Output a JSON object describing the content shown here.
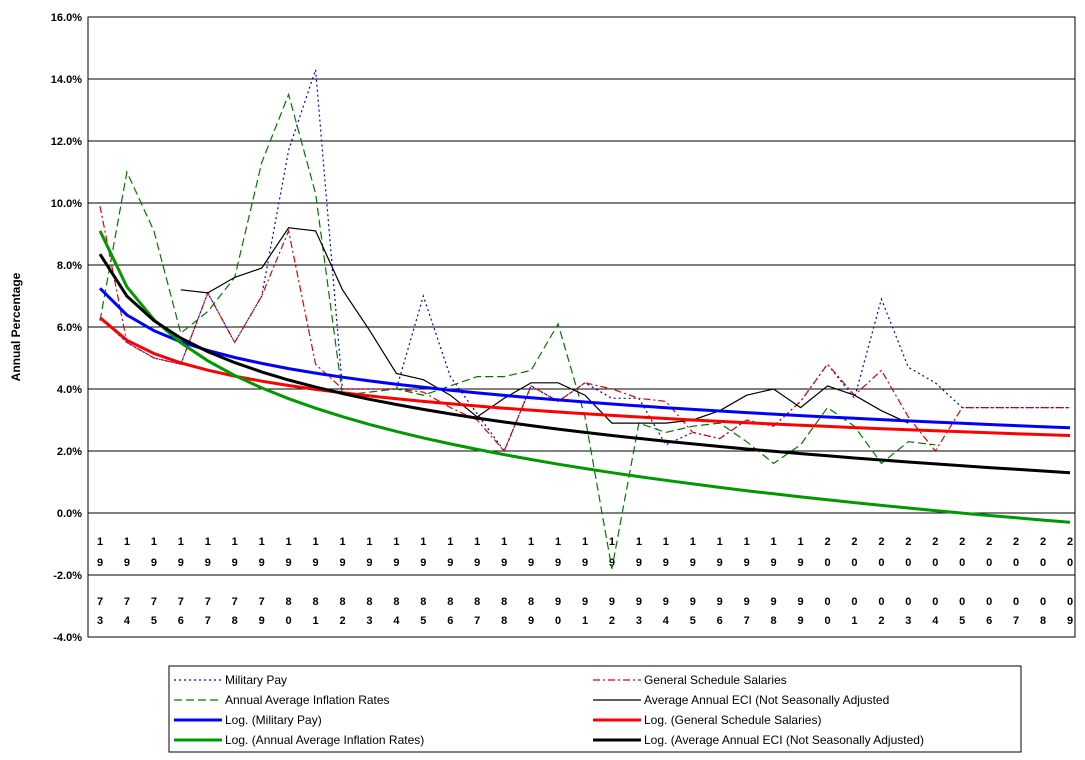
{
  "chart_data": {
    "type": "line",
    "title": "",
    "xlabel": "",
    "ylabel": "Annual Percentage",
    "ylim": [
      -4,
      16
    ],
    "ytick_step": 2,
    "ytick_labels": [
      "16.0%",
      "14.0%",
      "12.0%",
      "10.0%",
      "8.0%",
      "6.0%",
      "4.0%",
      "2.0%",
      "0.0%",
      "-2.0%",
      "-4.0%"
    ],
    "grid": "horizontal",
    "legend_position": "bottom",
    "categories": [
      "1973",
      "1974",
      "1975",
      "1976",
      "1977",
      "1978",
      "1979",
      "1980",
      "1981",
      "1982",
      "1983",
      "1984",
      "1985",
      "1986",
      "1987",
      "1988",
      "1989",
      "1990",
      "1991",
      "1992",
      "1993",
      "1994",
      "1995",
      "1996",
      "1997",
      "1998",
      "1999",
      "2000",
      "2001",
      "2002",
      "2003",
      "2004",
      "2005",
      "2006",
      "2007",
      "2008",
      "2009"
    ],
    "series": [
      {
        "name": "Military Pay",
        "color": "#0000CC",
        "dash": "2,3",
        "width": 1.2,
        "values": [
          6.3,
          5.5,
          5.0,
          4.8,
          7.1,
          5.5,
          7.0,
          11.7,
          14.3,
          4.0,
          4.0,
          4.0,
          7.0,
          4.4,
          3.2,
          2.0,
          4.1,
          3.6,
          4.2,
          3.7,
          3.7,
          2.2,
          2.6,
          2.4,
          3.0,
          2.8,
          3.6,
          4.8,
          3.7,
          6.9,
          4.7,
          4.2,
          3.4,
          3.4,
          3.4,
          3.4,
          3.4
        ]
      },
      {
        "name": "General Schedule Salaries",
        "color": "#DD0000",
        "dash": "7,3,2,3",
        "width": 1.2,
        "values": [
          9.9,
          5.5,
          5.0,
          4.8,
          7.1,
          5.5,
          7.0,
          9.1,
          4.8,
          4.0,
          4.0,
          4.0,
          3.9,
          3.4,
          3.0,
          2.0,
          4.1,
          3.6,
          4.2,
          4.0,
          3.7,
          3.6,
          2.6,
          2.4,
          3.0,
          2.8,
          3.6,
          4.8,
          3.8,
          4.6,
          3.1,
          2.0,
          3.4,
          3.4,
          3.4,
          3.4,
          3.4
        ]
      },
      {
        "name": "Annual Average Inflation Rates",
        "color": "#007700",
        "dash": "8,4",
        "width": 1.2,
        "values": [
          6.2,
          11.0,
          9.1,
          5.8,
          6.5,
          7.6,
          11.3,
          13.5,
          10.3,
          3.8,
          3.9,
          4.0,
          3.8,
          4.1,
          4.4,
          4.4,
          4.6,
          6.1,
          3.1,
          -1.8,
          2.9,
          2.6,
          2.8,
          2.9,
          2.3,
          1.6,
          2.2,
          3.4,
          2.8,
          1.6,
          2.3,
          2.2,
          null,
          null,
          null,
          null,
          null
        ]
      },
      {
        "name": "Average Annual ECI (Not Seasonally Adjusted",
        "color": "#000000",
        "dash": "",
        "width": 1.2,
        "values": [
          null,
          null,
          null,
          7.2,
          7.1,
          7.6,
          7.9,
          9.2,
          9.1,
          7.2,
          5.9,
          4.5,
          4.3,
          3.8,
          3.1,
          3.7,
          4.2,
          4.2,
          3.8,
          2.9,
          2.9,
          2.9,
          3.0,
          3.3,
          3.8,
          4.0,
          3.4,
          4.1,
          3.8,
          3.3,
          2.9,
          null,
          null,
          null,
          null,
          null,
          null
        ]
      }
    ],
    "trendlines": [
      {
        "name": "Log. (Military Pay)",
        "color": "#0000FF",
        "width": 3,
        "start": 7.25,
        "end": 2.75
      },
      {
        "name": "Log. (General Schedule Salaries)",
        "color": "#FF0000",
        "width": 3,
        "start": 6.3,
        "end": 2.5
      },
      {
        "name": "Log. (Annual Average Inflation Rates)",
        "color": "#009900",
        "width": 3,
        "start": 9.1,
        "end": -0.3
      },
      {
        "name": "Log. (Average Annual ECI (Not Seasonally Adjusted)",
        "color": "#000000",
        "width": 3,
        "start": 8.35,
        "end": 1.3
      }
    ]
  }
}
